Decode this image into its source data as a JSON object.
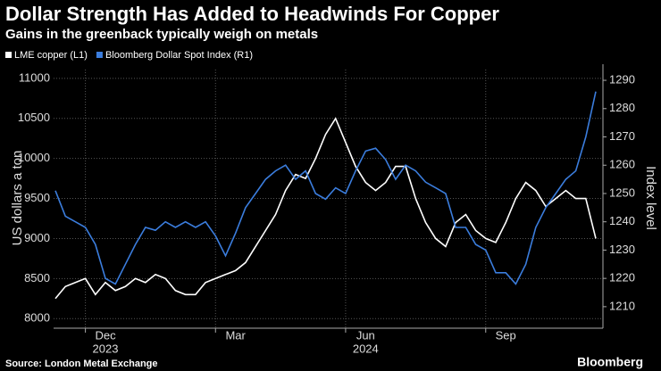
{
  "chart_data": {
    "type": "line",
    "title": "Dollar Strength Has Added to Headwinds For Copper",
    "subtitle": "Gains in the greenback typically weigh on metals",
    "ylabel": "US dollars a ton",
    "y2label": "Index level",
    "source": "Source: London Metal Exchange",
    "brand": "Bloomberg",
    "year_labels": [
      "2023",
      "2024"
    ],
    "categories": [
      null,
      null,
      null,
      null,
      null,
      "Dec",
      null,
      null,
      null,
      null,
      null,
      null,
      null,
      null,
      null,
      null,
      null,
      null,
      "Mar",
      null,
      null,
      null,
      null,
      null,
      null,
      null,
      null,
      null,
      null,
      null,
      null,
      "Jun",
      null,
      null,
      null,
      null,
      null,
      null,
      null,
      null,
      null,
      null,
      null,
      null,
      null,
      "Sep",
      null,
      null,
      null,
      null,
      null,
      null,
      null,
      null,
      null
    ],
    "ylim": [
      7880,
      11110
    ],
    "yticks": [
      8000,
      8500,
      9000,
      9500,
      10000,
      10500,
      11000
    ],
    "y2lim": [
      1202.4,
      1293.8
    ],
    "y2ticks": [
      1210,
      1220,
      1230,
      1240,
      1250,
      1260,
      1270,
      1280,
      1290
    ],
    "grid": true,
    "series": [
      {
        "name": "LME copper (L1)",
        "color": "#ffffff",
        "values": [
          8250,
          8400,
          8450,
          8500,
          8300,
          8450,
          8350,
          8400,
          8500,
          8450,
          8550,
          8500,
          8350,
          8300,
          8300,
          8450,
          8500,
          8550,
          8600,
          8700,
          8900,
          9100,
          9300,
          9600,
          9800,
          9750,
          10000,
          10300,
          10500,
          10200,
          9900,
          9700,
          9600,
          9700,
          9900,
          9900,
          9500,
          9200,
          9000,
          8900,
          9200,
          9300,
          9100,
          9000,
          8950,
          9200,
          9500,
          9700,
          9600,
          9400,
          9500,
          9600,
          9500,
          9500,
          9000
        ]
      },
      {
        "name": "Bloomberg Dollar Spot Index (R1)",
        "color": "#3b7ddd",
        "axis": "y2",
        "values": [
          1251,
          1242,
          1240,
          1238,
          1232,
          1220,
          1218,
          1225,
          1232,
          1238,
          1237,
          1240,
          1238,
          1240,
          1238,
          1240,
          1235,
          1228,
          1236,
          1245,
          1250,
          1255,
          1258,
          1260,
          1255,
          1258,
          1250,
          1248,
          1252,
          1250,
          1258,
          1265,
          1266,
          1262,
          1255,
          1260,
          1258,
          1254,
          1252,
          1250,
          1238,
          1238,
          1232,
          1230,
          1222,
          1222,
          1218,
          1225,
          1238,
          1245,
          1250,
          1255,
          1258,
          1270,
          1286
        ]
      }
    ]
  }
}
